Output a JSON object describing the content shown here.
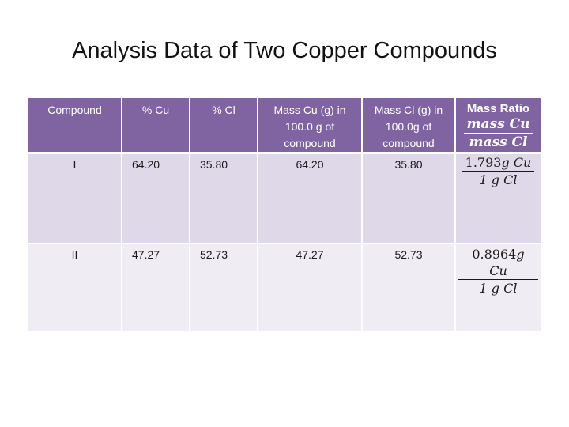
{
  "title": "Analysis Data of Two Copper Compounds",
  "table": {
    "headers": [
      "Compound",
      "% Cu",
      "% Cl",
      "Mass Cu (g) in 100.0 g of compound",
      "Mass Cl (g) in 100.0g of compound"
    ],
    "ratio_header": {
      "title": "Mass Ratio",
      "numerator": "mass Cu",
      "denominator": "mass Cl"
    },
    "rows": [
      {
        "compound": "I",
        "pct_cu": "64.20",
        "pct_cl": "35.80",
        "mass_cu": "64.20",
        "mass_cl": "35.80",
        "ratio_value": "1.793",
        "ratio_num_unit": "g Cu",
        "ratio_den": "1 g Cl"
      },
      {
        "compound": "II",
        "pct_cu": "47.27",
        "pct_cl": "52.73",
        "mass_cu": "47.27",
        "mass_cl": "52.73",
        "ratio_value": "0.8964",
        "ratio_num_unit": "g Cu",
        "ratio_den": "1 g Cl"
      }
    ]
  },
  "colors": {
    "header_bg": "#8064a2",
    "row_band_1": "#dfd8e8",
    "row_band_2": "#efecf3"
  }
}
